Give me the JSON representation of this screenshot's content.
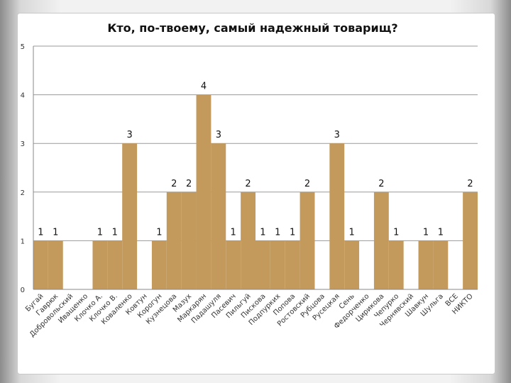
{
  "chart_data": {
    "type": "bar",
    "title": "Кто, по-твоему, самый надежный товарищ?",
    "xlabel": "",
    "ylabel": "",
    "ylim": [
      0,
      5
    ],
    "yticks": [
      0,
      1,
      2,
      3,
      4,
      5
    ],
    "grid": true,
    "legend": "none",
    "bar_color": "#c49a5c",
    "categories": [
      "Бугай",
      "Гаврюк",
      "Добровольский",
      "Иващенко",
      "Клочко А.",
      "Клочко В.",
      "Коваленко",
      "Ковтун",
      "Корогун",
      "Кузнецова",
      "Мазух",
      "Маркарян",
      "Падашуля",
      "Пасевич",
      "Пильгуй",
      "Пискова",
      "Подпурких",
      "Попова",
      "Ростовский",
      "Рубцова",
      "Русецкая",
      "Сень",
      "Федорченко",
      "Цирикова",
      "Чепурко",
      "Чернявский",
      "Шавкун",
      "Шульга",
      "ВСЕ",
      "НИКТО"
    ],
    "values": [
      1,
      1,
      0,
      0,
      1,
      1,
      3,
      0,
      1,
      2,
      2,
      4,
      3,
      1,
      2,
      1,
      1,
      1,
      2,
      0,
      3,
      1,
      0,
      2,
      1,
      0,
      1,
      1,
      0,
      2
    ],
    "data_labels": [
      "1",
      "1",
      "",
      "",
      "1",
      "1",
      "3",
      "",
      "1",
      "2",
      "2",
      "4",
      "3",
      "1",
      "2",
      "1",
      "1",
      "1",
      "2",
      "",
      "3",
      "1",
      "",
      "2",
      "1",
      "",
      "1",
      "1",
      "",
      "2"
    ]
  }
}
